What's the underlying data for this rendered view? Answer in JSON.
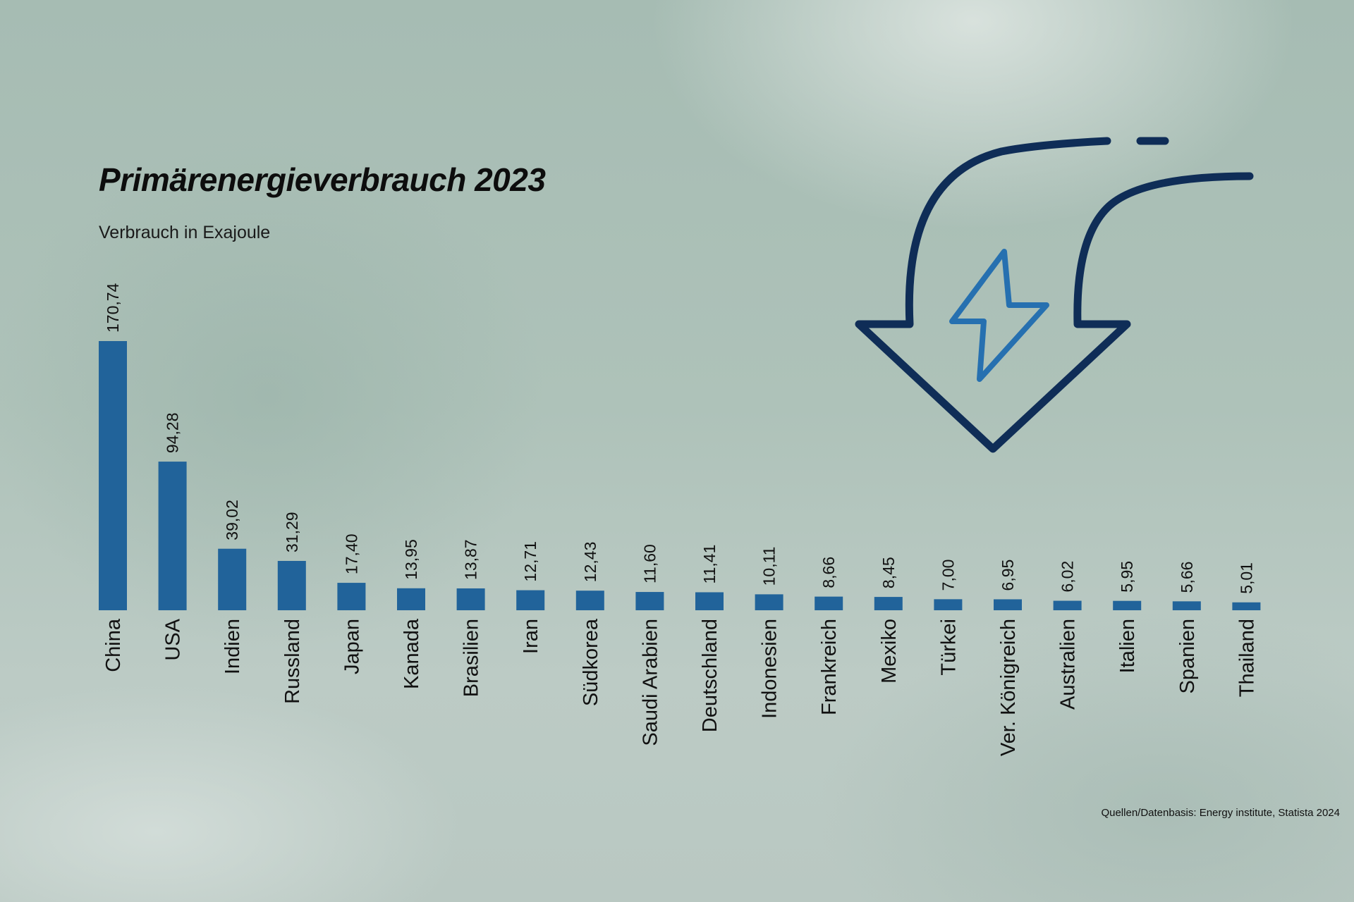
{
  "title": "Primärenergieverbrauch 2023",
  "subtitle": "Verbrauch in Exajoule",
  "source": "Quellen/Datenbasis: Energy institute, Statista 2024",
  "emblem": {
    "icon": "energy-reduction-arrow-icon",
    "outline_color": "#0f2d57",
    "bolt_color": "#2670b0"
  },
  "chart_data": {
    "type": "bar",
    "title": "Primärenergieverbrauch 2023",
    "subtitle": "Verbrauch in Exajoule",
    "xlabel": "",
    "ylabel": "",
    "grid": false,
    "bar_color": "#21639a",
    "categories": [
      "China",
      "USA",
      "Indien",
      "Russland",
      "Japan",
      "Kanada",
      "Brasilien",
      "Iran",
      "Südkorea",
      "Saudi Arabien",
      "Deutschland",
      "Indonesien",
      "Frankreich",
      "Mexiko",
      "Türkei",
      "Ver. Königreich",
      "Australien",
      "Italien",
      "Spanien",
      "Thailand"
    ],
    "values": [
      170.74,
      94.28,
      39.02,
      31.29,
      17.4,
      13.95,
      13.87,
      12.71,
      12.43,
      11.6,
      11.41,
      10.11,
      8.66,
      8.45,
      7.0,
      6.95,
      6.02,
      5.95,
      5.66,
      5.01
    ],
    "value_labels": [
      "170,74",
      "94,28",
      "39,02",
      "31,29",
      "17,40",
      "13,95",
      "13,87",
      "12,71",
      "12,43",
      "11,60",
      "11,41",
      "10,11",
      "8,66",
      "8,45",
      "7,00",
      "6,95",
      "6,02",
      "5,95",
      "5,66",
      "5,01"
    ]
  }
}
